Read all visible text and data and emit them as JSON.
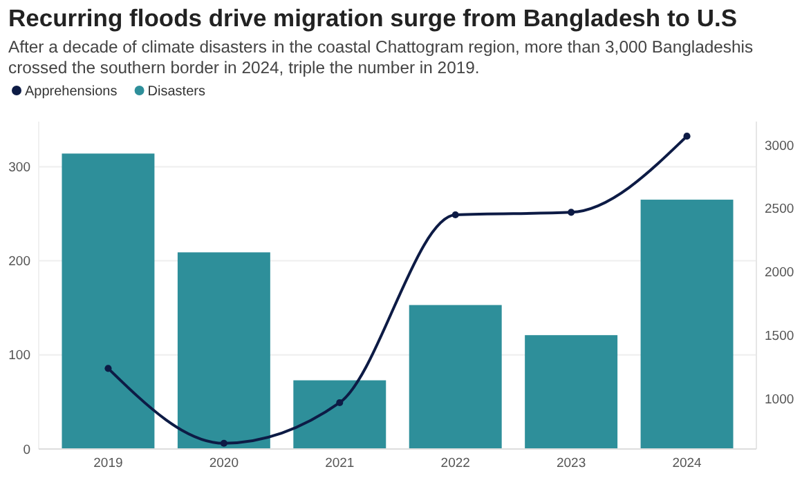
{
  "chart_data": {
    "type": "bar",
    "title": "Recurring floods drive migration surge from Bangladesh to U.S",
    "subtitle": "After a decade of climate disasters in the coastal Chattogram region, more than 3,000 Bangladeshis crossed the southern border in 2024, triple the number in 2019.",
    "categories": [
      "2019",
      "2020",
      "2021",
      "2022",
      "2023",
      "2024"
    ],
    "series": [
      {
        "name": "Apprehensions",
        "type": "line",
        "axis": "y2",
        "color": "#0d1b45",
        "values": [
          1240,
          650,
          970,
          2450,
          2470,
          3070
        ]
      },
      {
        "name": "Disasters",
        "color": "#2e8f9a",
        "values": [
          314,
          209,
          73,
          153,
          121,
          265
        ]
      }
    ],
    "ylim": [
      0,
      348
    ],
    "yticks": [
      0,
      100,
      200,
      300
    ],
    "y2lim": [
      605,
      3185
    ],
    "y2ticks": [
      1000,
      1500,
      2000,
      2500,
      3000
    ],
    "grid": "y",
    "legend": "top left",
    "marker": "circle"
  }
}
